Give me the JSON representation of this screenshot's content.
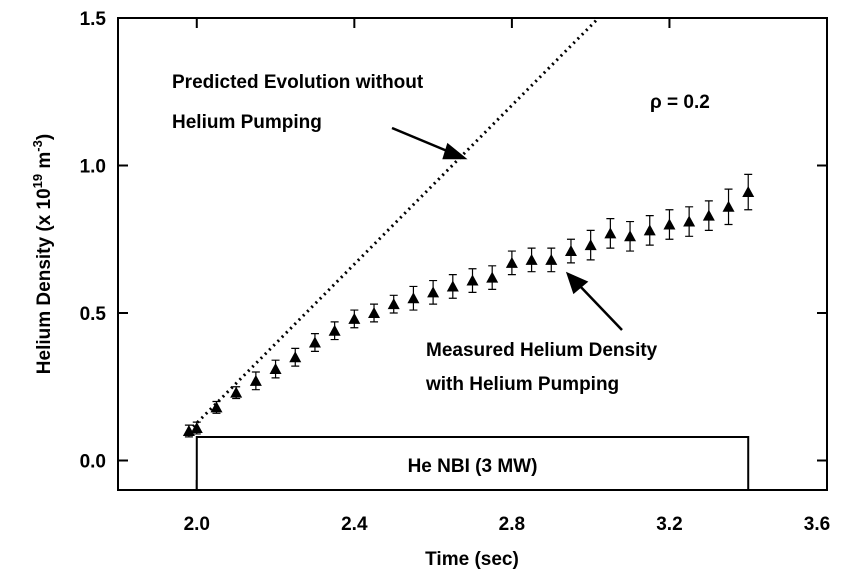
{
  "chart_data": {
    "type": "scatter",
    "x_label": "Time (sec)",
    "y_label": [
      "Helium Density (x 10",
      "19",
      " m",
      "-3",
      ")"
    ],
    "xlim": [
      1.8,
      3.6
    ],
    "ylim": [
      -0.1,
      1.5
    ],
    "xticks": [
      {
        "value": 2,
        "label": "2.0"
      },
      2.4,
      2.8,
      3.2,
      3.6
    ],
    "yticks": [
      {
        "value": 0,
        "label": "0.0"
      },
      0.5,
      {
        "value": 1,
        "label": "1.0"
      },
      1.5
    ],
    "series": [
      {
        "name": "Predicted Evolution without Helium Pumping",
        "style": "dotted",
        "color": "#000000",
        "x": [
          1.98,
          3.02
        ],
        "values": [
          0.1,
          1.5
        ]
      },
      {
        "name": "Measured Helium Density with Helium Pumping",
        "style": "markers",
        "color": "#000000",
        "x": [
          1.98,
          2.0,
          2.05,
          2.1,
          2.15,
          2.2,
          2.25,
          2.3,
          2.35,
          2.4,
          2.45,
          2.5,
          2.55,
          2.6,
          2.65,
          2.7,
          2.75,
          2.8,
          2.85,
          2.9,
          2.95,
          3.0,
          3.05,
          3.1,
          3.15,
          3.2,
          3.25,
          3.3,
          3.35,
          3.4
        ],
        "values": [
          0.1,
          0.11,
          0.18,
          0.23,
          0.27,
          0.31,
          0.35,
          0.4,
          0.44,
          0.48,
          0.5,
          0.53,
          0.55,
          0.57,
          0.59,
          0.61,
          0.62,
          0.67,
          0.68,
          0.68,
          0.71,
          0.73,
          0.77,
          0.76,
          0.78,
          0.8,
          0.81,
          0.83,
          0.86,
          0.91
        ],
        "errors": [
          0.02,
          0.02,
          0.02,
          0.02,
          0.03,
          0.03,
          0.03,
          0.03,
          0.03,
          0.03,
          0.03,
          0.03,
          0.04,
          0.04,
          0.04,
          0.04,
          0.04,
          0.04,
          0.04,
          0.04,
          0.04,
          0.05,
          0.05,
          0.05,
          0.05,
          0.05,
          0.05,
          0.05,
          0.06,
          0.06
        ]
      }
    ],
    "annotations": {
      "predicted": [
        "Predicted Evolution without",
        "Helium Pumping"
      ],
      "measured": [
        "Measured Helium Density",
        "with Helium Pumping"
      ],
      "rho": "ρ = 0.2"
    },
    "nbi": {
      "label": "He NBI (3 MW)",
      "x": [
        2.0,
        3.4
      ]
    }
  }
}
